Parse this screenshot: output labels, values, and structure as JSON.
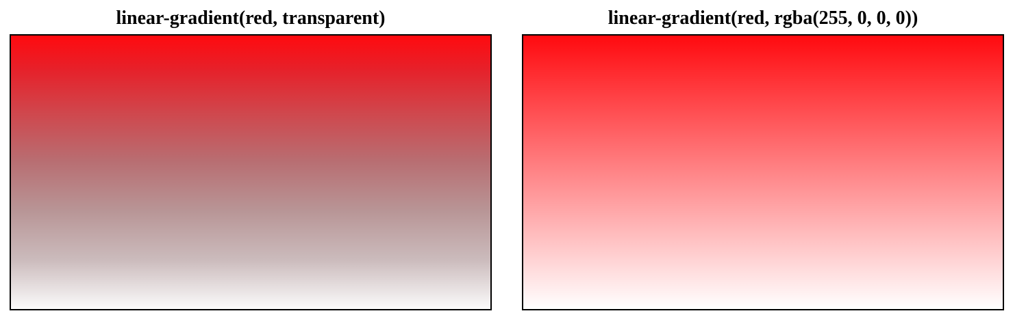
{
  "panels": [
    {
      "caption": "linear-gradient(red, transparent)"
    },
    {
      "caption": "linear-gradient(red, rgba(255, 0, 0, 0))"
    }
  ],
  "colors": {
    "start": "#ff0000",
    "end_left": "transparent",
    "end_right": "rgba(255, 0, 0, 0)",
    "border": "#000000"
  }
}
